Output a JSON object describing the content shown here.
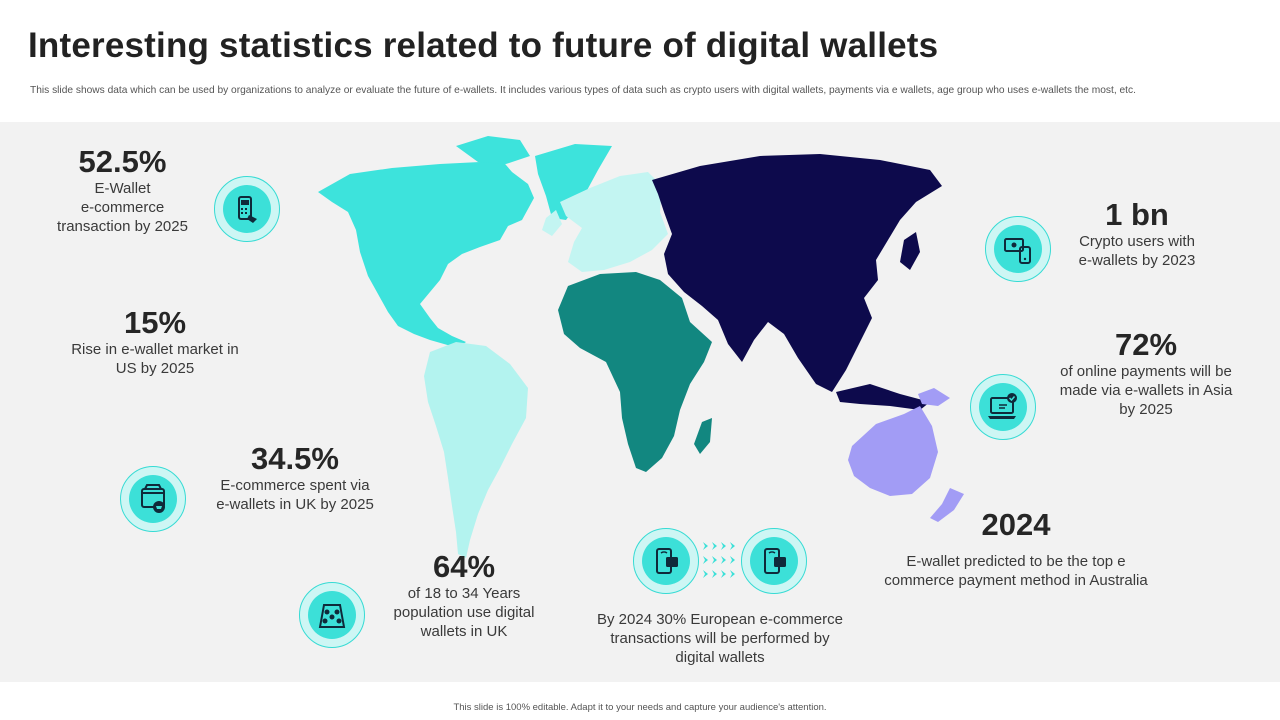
{
  "header": {
    "title": "Interesting statistics related to future of digital wallets",
    "subtitle": "This slide shows data which can be used by organizations to analyze or evaluate the future of e-wallets. It includes various types of data such as crypto users with digital wallets, payments via e wallets, age group who uses e-wallets the most, etc."
  },
  "stats": {
    "ecommerce": {
      "value": "52.5%",
      "line1": "E-Wallet",
      "line2": "e-commerce",
      "line3": "transaction by 2025"
    },
    "us_market": {
      "value": "15%",
      "line1": "Rise in e-wallet market in",
      "line2": "US by 2025"
    },
    "uk_spent": {
      "value": "34.5%",
      "line1": "E-commerce spent via",
      "line2": "e-wallets in UK by 2025"
    },
    "uk_age": {
      "value": "64%",
      "line1": "of 18 to 34 Years",
      "line2": "population use digital",
      "line3": "wallets in UK"
    },
    "europe": {
      "line1": "By 2024 30% European e-commerce",
      "line2": "transactions will be performed by",
      "line3": "digital wallets"
    },
    "crypto": {
      "value": "1 bn",
      "line1": "Crypto users with",
      "line2": "e-wallets by 2023"
    },
    "asia": {
      "value": "72%",
      "line1": "of online payments will be",
      "line2": "made via e-wallets in Asia",
      "line3": "by 2025"
    },
    "australia": {
      "value": "2024",
      "line1": "E-wallet predicted to be the top e",
      "line2": "commerce payment method in Australia"
    }
  },
  "icons": {
    "pos": "card-terminal-icon",
    "crypto": "crypto-wallet-icon",
    "laptop": "laptop-payment-icon",
    "shop": "online-shop-icon",
    "people": "people-group-icon",
    "phone": "mobile-wallet-icon"
  },
  "colors": {
    "north_america": "#3de3dc",
    "south_america": "#b3f3ef",
    "europe": "#c3f5f2",
    "africa": "#128780",
    "asia": "#0d0a4c",
    "australia": "#a29cf5",
    "icon_fill": "#3ce0d8",
    "icon_ring": "#cdf6f4"
  },
  "footer": {
    "text": "This slide is 100% editable. Adapt it to your needs and capture your audience's attention."
  }
}
